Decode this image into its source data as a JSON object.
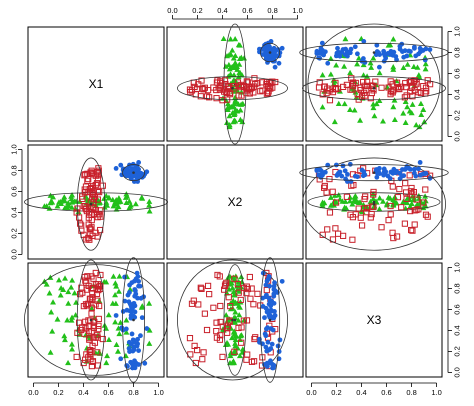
{
  "chart_data": {
    "type": "scatter",
    "variables": [
      "X1",
      "X2",
      "X3"
    ],
    "axis_range": [
      0,
      1
    ],
    "ticks": [
      "0.0",
      "0.2",
      "0.4",
      "0.6",
      "0.8",
      "1.0"
    ],
    "confidence_ellipses": true,
    "grid": false,
    "legend": "none",
    "groups": [
      {
        "id": "g1",
        "marker": "triangle",
        "color": "#22c01a",
        "X1": {
          "mean": 0.5,
          "sd": 0.26,
          "dist": "uniform"
        },
        "X2": {
          "mean": 0.5,
          "sd": 0.04,
          "dist": "normal"
        },
        "X3": {
          "mean": 0.5,
          "sd": 0.24,
          "dist": "uniform"
        },
        "n": 80
      },
      {
        "id": "g2",
        "marker": "square",
        "color": "#c8202a",
        "X1": {
          "mean": 0.46,
          "sd": 0.05,
          "dist": "normal"
        },
        "X2": {
          "mean": 0.48,
          "sd": 0.2,
          "dist": "uniform"
        },
        "X3": {
          "mean": 0.5,
          "sd": 0.26,
          "dist": "uniform"
        },
        "n": 80
      },
      {
        "id": "g3",
        "marker": "circle",
        "color": "#1e62d8",
        "X1": {
          "mean": 0.8,
          "sd": 0.04,
          "dist": "normal"
        },
        "X2": {
          "mean": 0.78,
          "sd": 0.035,
          "dist": "normal"
        },
        "X3": {
          "mean": 0.5,
          "sd": 0.27,
          "dist": "uniform"
        },
        "n": 70
      }
    ],
    "ellipse_color": "#333333"
  }
}
